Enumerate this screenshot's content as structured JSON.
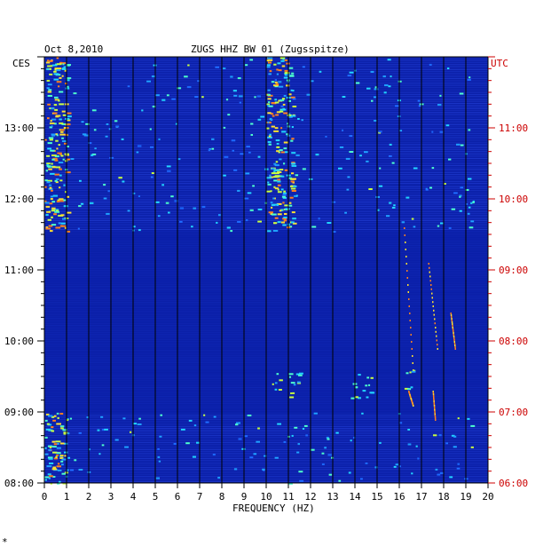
{
  "chart_data": {
    "type": "heatmap",
    "title": "ZUGS HHZ BW 01 (Zugsspitze)",
    "date": "Oct 8,2010",
    "xlabel": "FREQUENCY (HZ)",
    "xlim": [
      0,
      20
    ],
    "x_ticks": [
      "0",
      "1",
      "2",
      "3",
      "4",
      "5",
      "6",
      "7",
      "8",
      "9",
      "10",
      "11",
      "12",
      "13",
      "14",
      "15",
      "16",
      "17",
      "18",
      "19",
      "20"
    ],
    "left_axis_label": "CES",
    "right_axis_label": "UTC",
    "left_ticks": [
      "08:00",
      "09:00",
      "10:00",
      "11:00",
      "12:00",
      "13:00"
    ],
    "right_ticks": [
      "06:00",
      "07:00",
      "08:00",
      "09:00",
      "10:00",
      "11:00"
    ],
    "time_range_hours_ces": [
      8.0,
      14.0
    ],
    "background_color": "#0a1fa8",
    "right_axis_color": "#cc0000",
    "grid_color": "#000000",
    "notable_features": [
      {
        "desc": "strong low-frequency energy",
        "freq": [
          0,
          1
        ],
        "time_ces": [
          8.0,
          9.0
        ]
      },
      {
        "desc": "strong low-frequency energy",
        "freq": [
          0,
          1
        ],
        "time_ces": [
          11.55,
          14.0
        ]
      },
      {
        "desc": "persistent line near 10-11 Hz",
        "freq": [
          10,
          11.2
        ],
        "time_ces": [
          11.55,
          14.0
        ]
      },
      {
        "desc": "narrow tonal traces",
        "freq": [
          16,
          18.5
        ],
        "time_ces": [
          9.1,
          11.6
        ]
      }
    ]
  }
}
